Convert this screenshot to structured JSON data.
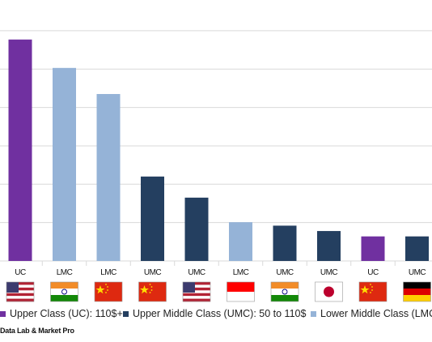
{
  "chart_data": {
    "type": "bar",
    "categories": [
      "UC",
      "LMC",
      "LMC",
      "UMC",
      "UMC",
      "LMC",
      "UMC",
      "UMC",
      "UC",
      "UMC"
    ],
    "flags": [
      "usa-flag-icon",
      "india-flag-icon",
      "china-flag-icon",
      "china-flag-icon",
      "usa-flag-icon",
      "indonesia-flag-icon",
      "india-flag-icon",
      "japan-flag-icon",
      "china-flag-icon",
      "germany-flag-icon"
    ],
    "values": [
      57.7,
      50.3,
      43.5,
      22.0,
      16.5,
      10.1,
      9.2,
      7.8,
      6.4,
      6.4
    ],
    "classes": [
      "UC",
      "LMC",
      "LMC",
      "UMC",
      "UMC",
      "LMC",
      "UMC",
      "UMC",
      "UC",
      "UMC"
    ],
    "ylim": [
      0,
      68
    ],
    "grid": true,
    "legend_position": "bottom",
    "title": "",
    "xlabel": "",
    "ylabel": ""
  },
  "legend": {
    "items": [
      {
        "key": "UC",
        "label": "Upper Class (UC): 110$+",
        "color": "#7030a0"
      },
      {
        "key": "UMC",
        "label": "Upper Middle Class (UMC): 50 to 110$",
        "color": "#243f60"
      },
      {
        "key": "LMC",
        "label": "Lower Middle Class (LMC):",
        "color": "#95b3d7"
      }
    ]
  },
  "source": "Data Lab & Market Pro"
}
